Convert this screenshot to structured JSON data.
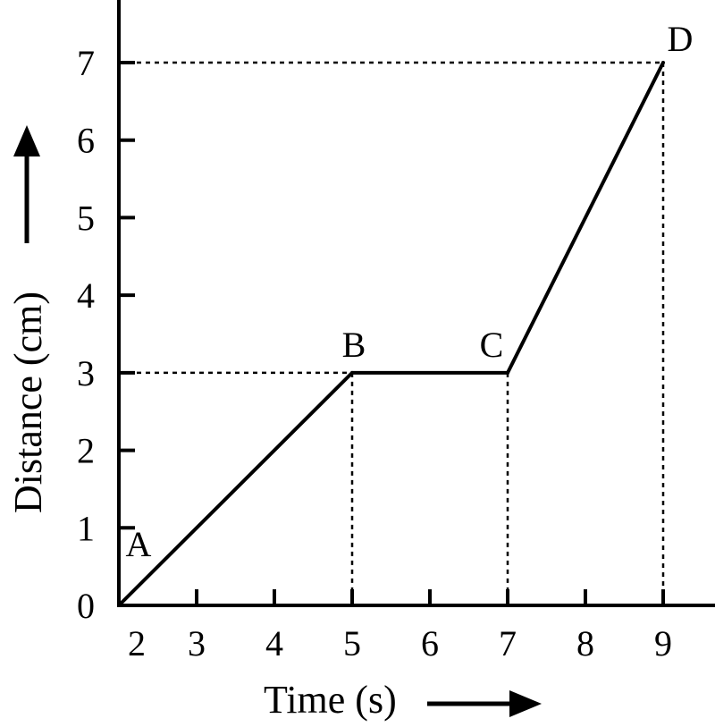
{
  "chart_data": {
    "type": "line",
    "xlabel": "Time (s)",
    "ylabel": "Distance (cm)",
    "x_ticks": [
      "2",
      "3",
      "4",
      "5",
      "6",
      "7",
      "8",
      "9"
    ],
    "y_ticks": [
      "0",
      "1",
      "2",
      "3",
      "4",
      "5",
      "6",
      "7"
    ],
    "xlim": [
      2,
      9
    ],
    "ylim": [
      0,
      7
    ],
    "grid": false,
    "points": [
      {
        "label": "A",
        "x": 2,
        "y": 0
      },
      {
        "label": "B",
        "x": 5,
        "y": 3
      },
      {
        "label": "C",
        "x": 7,
        "y": 3
      },
      {
        "label": "D",
        "x": 9,
        "y": 7
      }
    ],
    "guide_lines": [
      {
        "to_point": "B",
        "horizontal": true,
        "vertical": true
      },
      {
        "to_point": "C",
        "horizontal": false,
        "vertical": true
      },
      {
        "to_point": "D",
        "horizontal": true,
        "vertical": true
      }
    ]
  }
}
